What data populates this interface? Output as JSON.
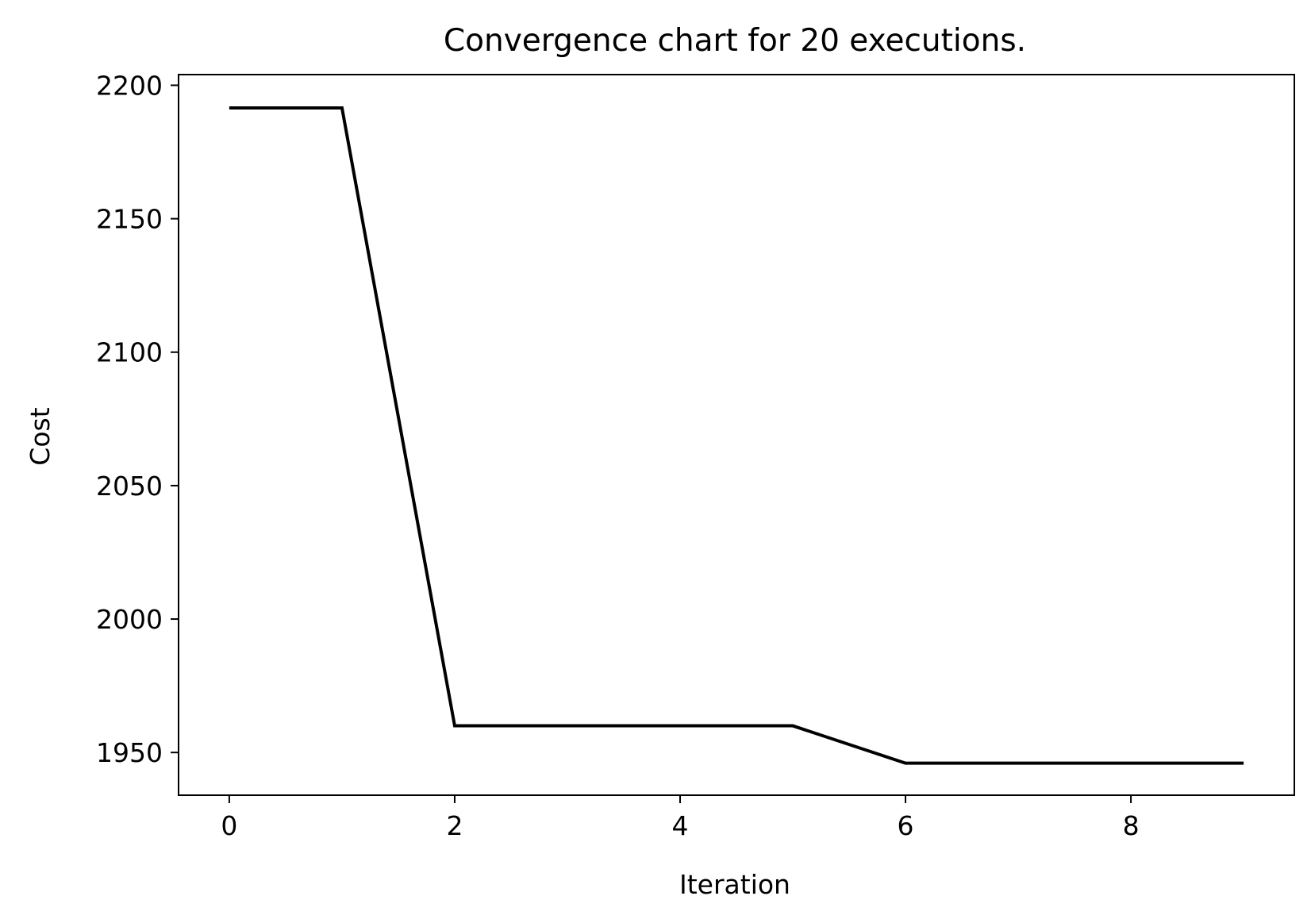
{
  "chart_data": {
    "type": "line",
    "title": "Convergence chart for 20 executions.",
    "xlabel": "Iteration",
    "ylabel": "Cost",
    "xlim": [
      -0.45,
      9.45
    ],
    "ylim": [
      1934,
      2204
    ],
    "xticks": [
      0,
      2,
      4,
      6,
      8
    ],
    "yticks": [
      1950,
      2000,
      2050,
      2100,
      2150,
      2200
    ],
    "grid": false,
    "legend": "none",
    "series": [
      {
        "color": "#000000",
        "x": [
          0,
          1,
          2,
          3,
          4,
          5,
          6,
          7,
          8,
          9
        ],
        "y": [
          2191.5,
          2191.5,
          1960,
          1960,
          1960,
          1960,
          1946,
          1946,
          1946,
          1946
        ]
      }
    ]
  }
}
